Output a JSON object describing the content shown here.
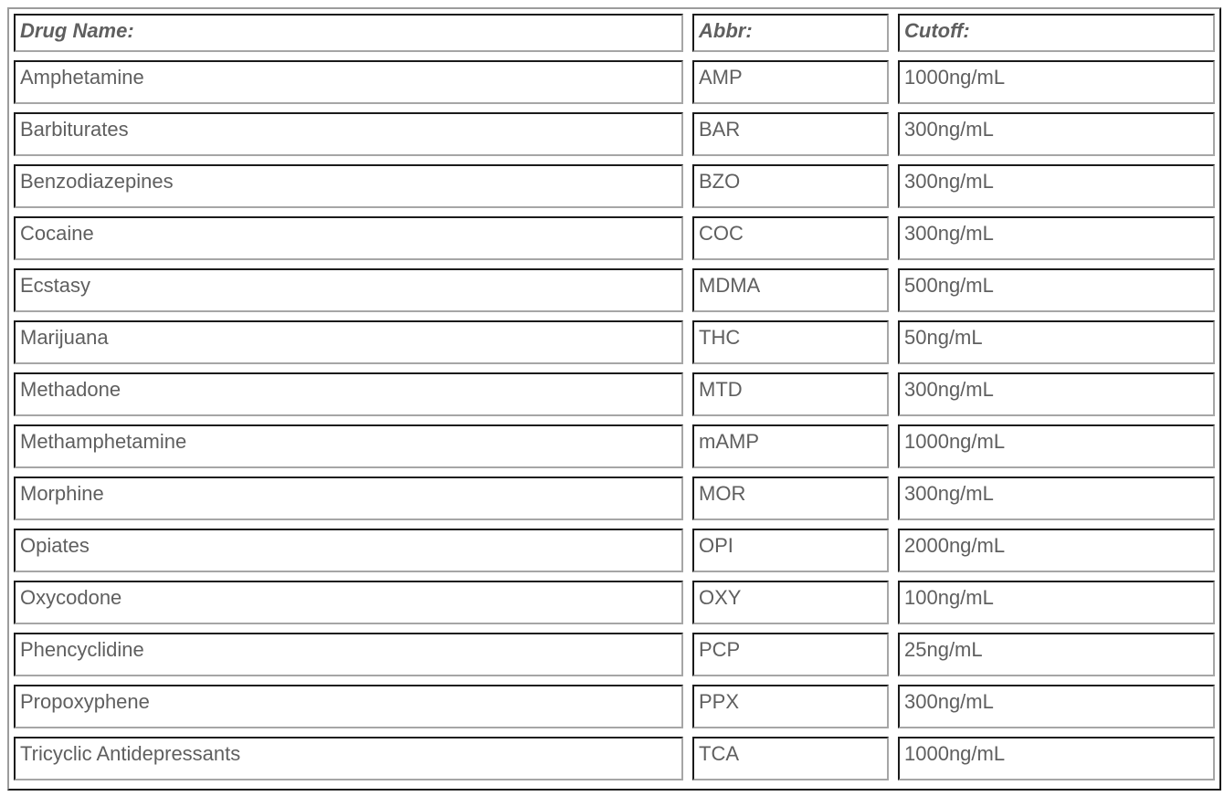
{
  "table": {
    "columns": [
      {
        "label": "Drug Name:"
      },
      {
        "label": "Abbr:"
      },
      {
        "label": "Cutoff:"
      }
    ],
    "rows": [
      [
        "Amphetamine",
        "AMP",
        "1000ng/mL"
      ],
      [
        "Barbiturates",
        "BAR",
        "300ng/mL"
      ],
      [
        "Benzodiazepines",
        "BZO",
        "300ng/mL"
      ],
      [
        "Cocaine",
        "COC",
        "300ng/mL"
      ],
      [
        "Ecstasy",
        "MDMA",
        "500ng/mL"
      ],
      [
        "Marijuana",
        "THC",
        "50ng/mL"
      ],
      [
        "Methadone",
        "MTD",
        "300ng/mL"
      ],
      [
        "Methamphetamine",
        "mAMP",
        "1000ng/mL"
      ],
      [
        "Morphine",
        "MOR",
        "300ng/mL"
      ],
      [
        "Opiates",
        "OPI",
        "2000ng/mL"
      ],
      [
        "Oxycodone",
        "OXY",
        "100ng/mL"
      ],
      [
        "Phencyclidine",
        "PCP",
        "25ng/mL"
      ],
      [
        "Propoxyphene",
        "PPX",
        "300ng/mL"
      ],
      [
        "Tricyclic Antidepressants",
        "TCA",
        "1000ng/mL"
      ]
    ],
    "colors": {
      "text": "#5f5f5f",
      "cell-border-dark": "#1a1a1a",
      "cell-border-light": "#a6a6a6",
      "frame-border-light": "#9c9c9c",
      "frame-border-dark": "#1a1a1a",
      "page-bg": "#ffffff"
    }
  }
}
